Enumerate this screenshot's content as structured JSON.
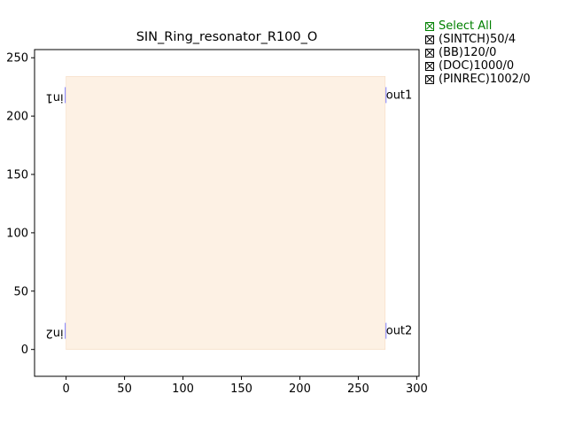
{
  "chart_data": {
    "type": "layout",
    "title": "SIN_Ring_resonator_R100_O",
    "xlim": [
      -27,
      302
    ],
    "ylim": [
      -23,
      257
    ],
    "x_ticks": [
      0,
      50,
      100,
      150,
      200,
      250,
      300
    ],
    "y_ticks": [
      0,
      50,
      100,
      150,
      200,
      250
    ],
    "grid": false,
    "legend_placement": "outside-right",
    "cell": {
      "x0": 0,
      "x1": 273,
      "y0": 0,
      "y1": 234,
      "fill": "#fdf1e4"
    },
    "ports": [
      {
        "name": "in1",
        "x": 0,
        "y": 218,
        "side": "left",
        "text_rotated": true
      },
      {
        "name": "out1",
        "x": 273,
        "y": 218,
        "side": "right",
        "text_rotated": false
      },
      {
        "name": "in2",
        "x": 0,
        "y": 16,
        "side": "left",
        "text_rotated": true
      },
      {
        "name": "out2",
        "x": 273,
        "y": 16,
        "side": "right",
        "text_rotated": false
      }
    ],
    "port_color": "#8080ff"
  },
  "legend": {
    "select_all": "Select All",
    "select_all_color": "#008000",
    "layers": [
      "(SINTCH)50/4",
      "(BB)120/0",
      "(DOC)1000/0",
      "(PINREC)1002/0"
    ]
  }
}
